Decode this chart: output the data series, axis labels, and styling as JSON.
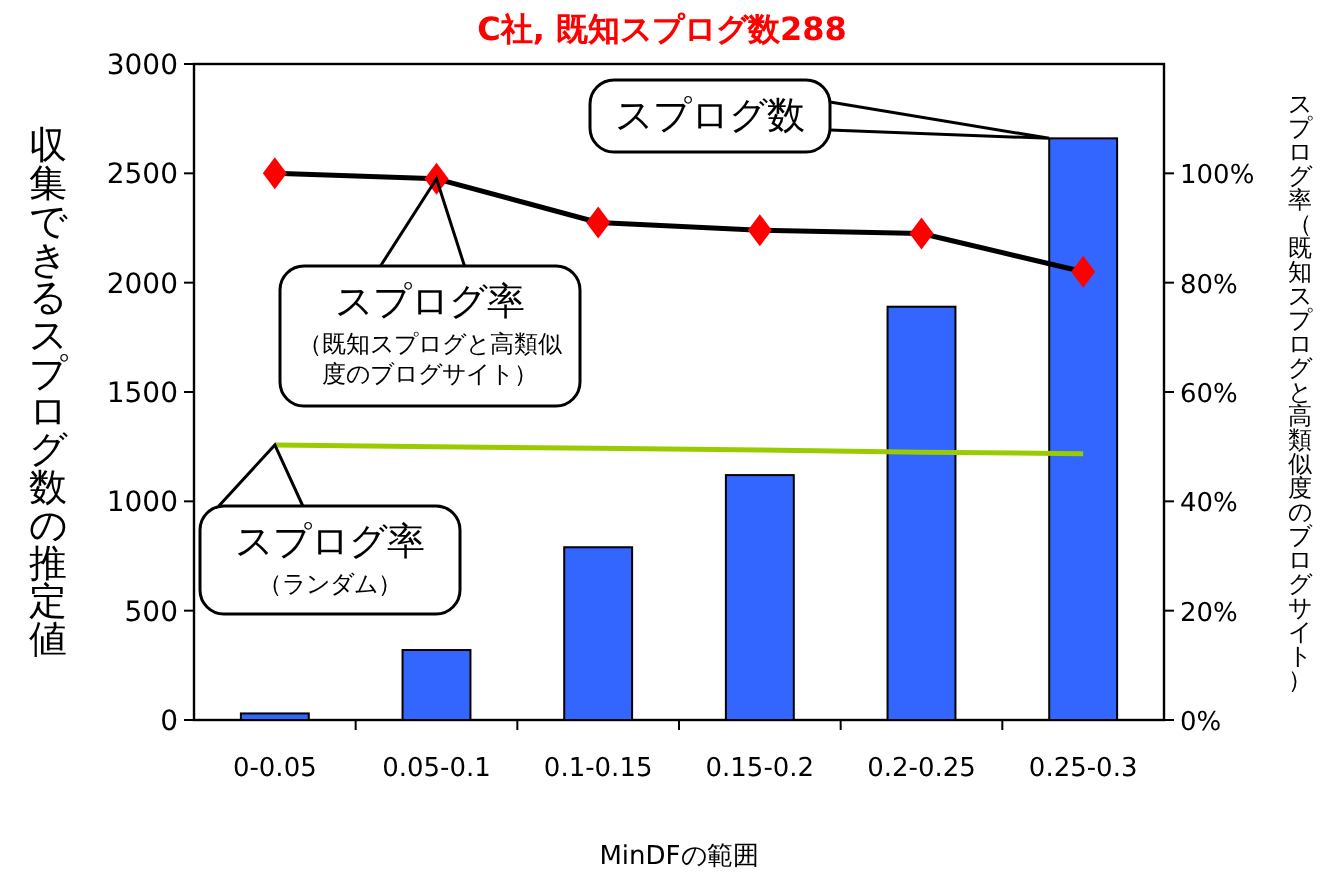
{
  "chart_data": {
    "type": "bar",
    "title": "C社, 既知スプログ数288",
    "xlabel": "MinDFの範囲",
    "ylabel": "収集できるスプログ数の推定値",
    "y2label": "スプログ率（既知スプログと高類似度のブログサイト）",
    "categories": [
      "0-0.05",
      "0.05-0.1",
      "0.1-0.15",
      "0.15-0.2",
      "0.2-0.25",
      "0.25-0.3"
    ],
    "series": [
      {
        "color": "#3366ff",
        "values": [
          30,
          320,
          790,
          1120,
          1890,
          2660
        ]
      },
      {
        "type": "line",
        "axis": "y2",
        "color": "#000000",
        "marker": "diamond",
        "colors": [
          "#ff0000",
          "#ff0000",
          "#ff0000",
          "#ff0000",
          "#ff0000",
          "#ff0000"
        ],
        "values": [
          100,
          99,
          91,
          89.6,
          89,
          82
        ]
      },
      {
        "type": "line",
        "axis": "y2",
        "color": "#99cc00",
        "marker": "none",
        "values": [
          50.3,
          50,
          49.7,
          49.4,
          49,
          48.7
        ]
      }
    ],
    "ylim": [
      0,
      3000
    ],
    "yticks": [
      0,
      500,
      1000,
      1500,
      2000,
      2500,
      3000
    ],
    "y2lim": [
      0,
      120
    ],
    "y2ticks": [
      {
        "value": 0,
        "label": "0%"
      },
      {
        "value": 20,
        "label": "20%"
      },
      {
        "value": 40,
        "label": "40%"
      },
      {
        "value": 60,
        "label": "60%"
      },
      {
        "value": 80,
        "label": "80%"
      },
      {
        "value": 100,
        "label": "100%"
      }
    ],
    "grid": false,
    "legend": false,
    "annotations": [
      "スプログ数",
      {
        "text": "スプログ率",
        "x": "0.05-0.1",
        "y": 2475
      },
      "（既知スプログと高類似度のブログサイト）",
      {
        "text": "スプログ率",
        "x": "0-0.05",
        "y": 1258
      },
      "（ランダム）"
    ]
  }
}
